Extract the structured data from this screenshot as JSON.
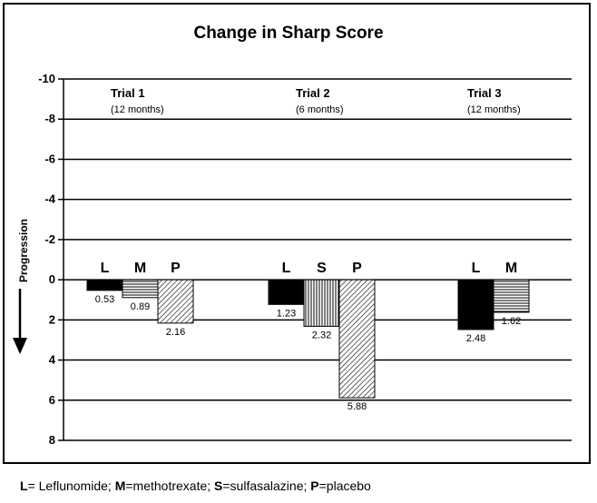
{
  "chart_data": {
    "type": "bar",
    "title": "Change in Sharp Score",
    "ylabel": "Progression",
    "yticks": [
      "-10",
      "-8",
      "-6",
      "-4",
      "-2",
      "0",
      "2",
      "4",
      "6",
      "8"
    ],
    "ylim": [
      -10,
      8
    ],
    "y_inverted": true,
    "grid": true,
    "groups": [
      {
        "name": "Trial 1",
        "duration": "(12 months)",
        "bars": [
          {
            "label": "L",
            "value": 0.53,
            "value_label": "0.53",
            "pattern": "solid"
          },
          {
            "label": "M",
            "value": 0.89,
            "value_label": "0.89",
            "pattern": "horizontal"
          },
          {
            "label": "P",
            "value": 2.16,
            "value_label": "2.16",
            "pattern": "diagonal"
          }
        ]
      },
      {
        "name": "Trial 2",
        "duration": "(6 months)",
        "bars": [
          {
            "label": "L",
            "value": 1.23,
            "value_label": "1.23",
            "pattern": "solid"
          },
          {
            "label": "S",
            "value": 2.32,
            "value_label": "2.32",
            "pattern": "vertical"
          },
          {
            "label": "P",
            "value": 5.88,
            "value_label": "5.88",
            "pattern": "diagonal"
          }
        ]
      },
      {
        "name": "Trial 3",
        "duration": "(12 months)",
        "bars": [
          {
            "label": "L",
            "value": 2.48,
            "value_label": "2.48",
            "pattern": "solid"
          },
          {
            "label": "M",
            "value": 1.62,
            "value_label": "1.62",
            "pattern": "horizontal"
          }
        ]
      }
    ]
  },
  "legend": [
    {
      "key": "L",
      "text": "= Leflunomide; "
    },
    {
      "key": "M",
      "text": "=methotrexate; "
    },
    {
      "key": "S",
      "text": "=sulfasalazine; "
    },
    {
      "key": "P",
      "text": "=placebo"
    }
  ]
}
